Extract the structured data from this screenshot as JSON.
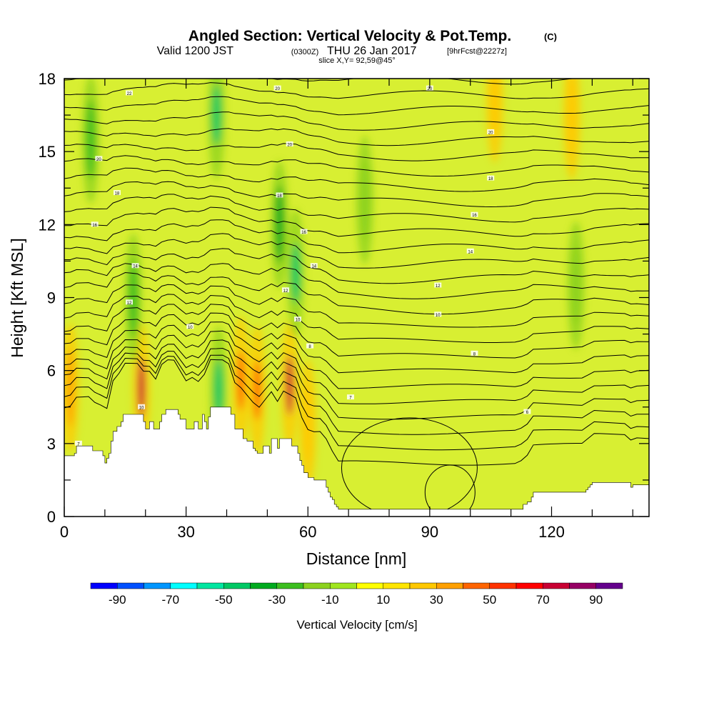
{
  "header": {
    "title": "Angled Section: Vertical Velocity & Pot.Temp.",
    "title_unit": "(C)",
    "subtitle_valid": "Valid 1200 JST",
    "subtitle_utc": "(0300Z)",
    "subtitle_date": "THU 26 Jan 2017",
    "subtitle_fcst": "[9hrFcst@2227z]",
    "slice_info": "slice X,Y= 92,59@45°"
  },
  "chart_data": {
    "type": "heatmap",
    "title": "Angled Section: Vertical Velocity & Pot.Temp.",
    "xlabel": "Distance [nm]",
    "ylabel": "Height [Kft MSL]",
    "xlim": [
      0,
      144
    ],
    "ylim": [
      0,
      18
    ],
    "x_ticks": [
      "0",
      "30",
      "60",
      "90",
      "120"
    ],
    "y_ticks": [
      "0",
      "3",
      "6",
      "9",
      "12",
      "15",
      "18"
    ],
    "grid": false,
    "colorbar": {
      "label": "Vertical Velocity [cm/s]",
      "tick_labels": [
        "-90",
        "-70",
        "-50",
        "-30",
        "-10",
        "10",
        "30",
        "50",
        "70",
        "90"
      ],
      "levels": [
        -100,
        -90,
        -80,
        -70,
        -60,
        -50,
        -40,
        -30,
        -20,
        -10,
        0,
        10,
        20,
        30,
        40,
        50,
        60,
        70,
        80,
        90,
        100
      ],
      "colors": [
        "#0000ff",
        "#0050ff",
        "#0096ff",
        "#00ffff",
        "#00e6a0",
        "#00c864",
        "#00aa1e",
        "#3cbe1e",
        "#8cd21e",
        "#a0e61e",
        "#ffff00",
        "#ffe600",
        "#ffc800",
        "#ffa000",
        "#ff6400",
        "#ff3200",
        "#ff0000",
        "#c80032",
        "#960064",
        "#64008c"
      ]
    },
    "terrain_profile": {
      "x": [
        0,
        2.5,
        3,
        6.5,
        7,
        9.5,
        10,
        10.5,
        11,
        11.5,
        12,
        13,
        14,
        14.5,
        19,
        19.5,
        20,
        20.5,
        21,
        22,
        23,
        23.5,
        24,
        24.5,
        25,
        27,
        28,
        28.5,
        30,
        31,
        32,
        33,
        34,
        34.5,
        35,
        35.5,
        36,
        40,
        41,
        42,
        43,
        44,
        45,
        46,
        46.5,
        47,
        47.5,
        48.5,
        49,
        50,
        50.5,
        51,
        52,
        52.5,
        53,
        53.5,
        55,
        56,
        57,
        57.5,
        58,
        58.5,
        59,
        59.5,
        60,
        60.5,
        61,
        61.5,
        64,
        64.5,
        65,
        65.5,
        66,
        66.5,
        67,
        67.5,
        68,
        68.5,
        69,
        112,
        113,
        114,
        115,
        115.5,
        128,
        128.5,
        129,
        129.5,
        130,
        139,
        139.5,
        140,
        140.5,
        144
      ],
      "height": [
        2.5,
        2.6,
        2.9,
        2.9,
        2.7,
        2.5,
        2.2,
        2.4,
        2.6,
        3.1,
        3.5,
        3.7,
        3.9,
        4.2,
        4.2,
        3.9,
        3.6,
        3.6,
        3.9,
        3.6,
        3.6,
        3.9,
        4.2,
        4.2,
        4.4,
        4.4,
        4.2,
        4.0,
        3.6,
        3.6,
        3.9,
        3.6,
        4.2,
        3.9,
        3.6,
        4.1,
        4.5,
        4.5,
        4.2,
        3.6,
        3.6,
        3.2,
        3.1,
        3.1,
        2.8,
        2.7,
        2.6,
        2.6,
        2.9,
        2.9,
        2.6,
        3.2,
        3.2,
        2.8,
        3.2,
        3.2,
        3.2,
        2.9,
        2.9,
        2.6,
        2.3,
        2.1,
        1.8,
        1.8,
        1.6,
        1.6,
        1.6,
        1.5,
        1.5,
        1.2,
        1.0,
        0.8,
        0.7,
        0.5,
        0.4,
        0.3,
        0.3,
        0.3,
        0.3,
        0.3,
        0.5,
        0.6,
        0.8,
        1.0,
        1.0,
        1.1,
        1.2,
        1.3,
        1.4,
        1.4,
        1.2,
        1.3,
        1.3,
        1.3
      ]
    },
    "updraft_cores": [
      {
        "x": 19,
        "z": 5.3,
        "w": 75
      },
      {
        "x": 55.5,
        "z": 5.4,
        "w": 75
      },
      {
        "x": 43.5,
        "z": 5.6,
        "w": 45
      },
      {
        "x": 47.5,
        "z": 5.2,
        "w": 45
      },
      {
        "x": 1.5,
        "z": 5.3,
        "w": 35
      },
      {
        "x": 106,
        "z": 17.2,
        "w": 25
      },
      {
        "x": 125,
        "z": 16.5,
        "w": 25
      },
      {
        "x": 60,
        "z": 3.8,
        "w": 25
      }
    ],
    "downdraft_cores": [
      {
        "x": 38,
        "z": 5.2,
        "w": -45
      },
      {
        "x": 37.5,
        "z": 16.5,
        "w": -45
      },
      {
        "x": 57,
        "z": 10.0,
        "w": -50
      },
      {
        "x": 53,
        "z": 12.0,
        "w": -35
      },
      {
        "x": 6.5,
        "z": 15.5,
        "w": -25
      },
      {
        "x": 74,
        "z": 13.0,
        "w": -20
      },
      {
        "x": 126,
        "z": 9.5,
        "w": -20
      },
      {
        "x": 17,
        "z": 9.0,
        "w": -25
      }
    ],
    "theta_labels": [
      {
        "x": 16,
        "z": 17.4,
        "label": "22"
      },
      {
        "x": 52.5,
        "z": 17.6,
        "label": "20"
      },
      {
        "x": 90,
        "z": 17.6,
        "label": "20"
      },
      {
        "x": 8.5,
        "z": 14.7,
        "label": "20"
      },
      {
        "x": 55.5,
        "z": 15.3,
        "label": "20"
      },
      {
        "x": 105,
        "z": 15.8,
        "label": "20"
      },
      {
        "x": 13,
        "z": 13.3,
        "label": "18"
      },
      {
        "x": 53,
        "z": 13.2,
        "label": "18"
      },
      {
        "x": 105,
        "z": 13.9,
        "label": "18"
      },
      {
        "x": 7.5,
        "z": 12.0,
        "label": "16"
      },
      {
        "x": 59,
        "z": 11.7,
        "label": "16"
      },
      {
        "x": 101,
        "z": 12.4,
        "label": "16"
      },
      {
        "x": 17.5,
        "z": 10.3,
        "label": "14"
      },
      {
        "x": 61.5,
        "z": 10.3,
        "label": "14"
      },
      {
        "x": 100,
        "z": 10.9,
        "label": "14"
      },
      {
        "x": 16,
        "z": 8.8,
        "label": "12"
      },
      {
        "x": 54.5,
        "z": 9.3,
        "label": "12"
      },
      {
        "x": 92,
        "z": 9.5,
        "label": "12"
      },
      {
        "x": 31,
        "z": 7.8,
        "label": "10"
      },
      {
        "x": 57.5,
        "z": 8.1,
        "label": "10"
      },
      {
        "x": 92,
        "z": 8.3,
        "label": "10"
      },
      {
        "x": 60.5,
        "z": 7.0,
        "label": "8"
      },
      {
        "x": 101,
        "z": 6.7,
        "label": "8"
      },
      {
        "x": 70.5,
        "z": 4.9,
        "label": "7"
      },
      {
        "x": 114,
        "z": 4.3,
        "label": "6"
      },
      {
        "x": 19,
        "z": 4.5,
        "label": "10"
      },
      {
        "x": 3.5,
        "z": 3.0,
        "label": "7"
      }
    ]
  },
  "colorbar_label": "Vertical Velocity [cm/s]"
}
